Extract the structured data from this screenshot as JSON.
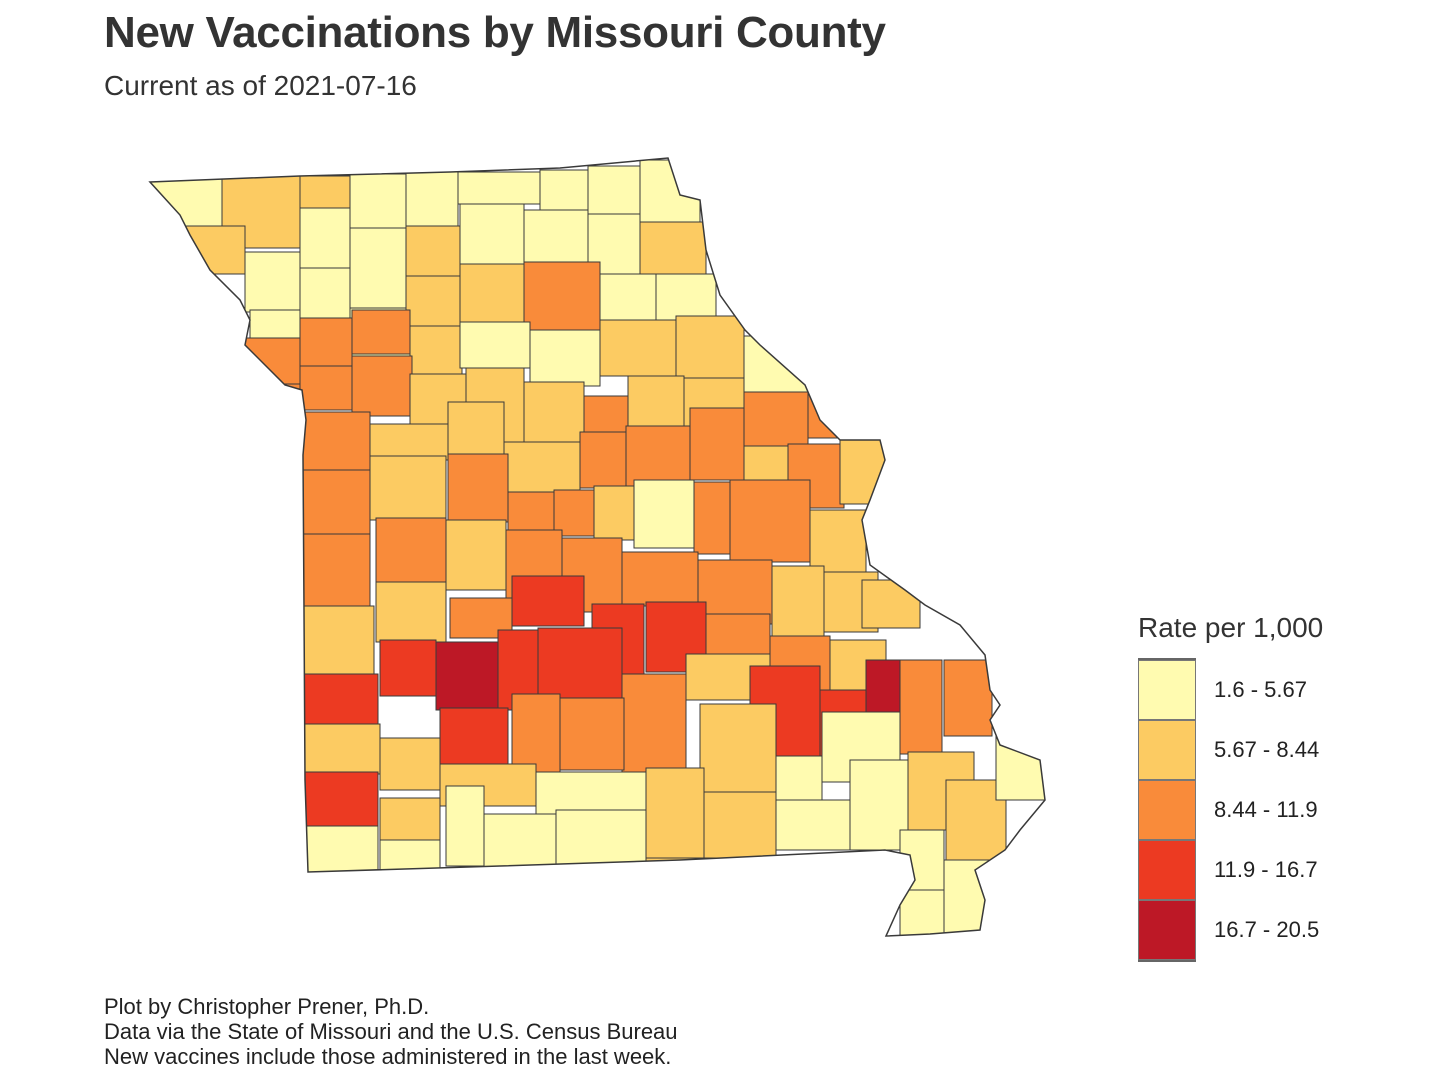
{
  "title": "New Vaccinations by Missouri County",
  "subtitle": "Current as of 2021-07-16",
  "legend": {
    "title": "Rate per 1,000",
    "classes": [
      {
        "label": "1.6 - 5.67",
        "color": "#FFFBB0"
      },
      {
        "label": "5.67 - 8.44",
        "color": "#FCCB62"
      },
      {
        "label": "8.44 - 11.9",
        "color": "#F98B3A"
      },
      {
        "label": "11.9 - 16.7",
        "color": "#EC3A22"
      },
      {
        "label": "16.7 - 20.5",
        "color": "#BD1826"
      }
    ]
  },
  "caption": [
    "Plot by Christopher Prener, Ph.D.",
    "Data via the State of Missouri and the U.S. Census Bureau",
    "New vaccines include those administered in the last week."
  ],
  "counties_class_sequence": [
    0,
    1,
    1,
    0,
    0,
    0,
    0,
    0,
    0,
    1,
    0,
    0,
    0,
    1,
    0,
    0,
    0,
    1,
    0,
    0,
    0,
    1,
    1,
    2,
    0,
    0,
    2,
    2,
    2,
    1,
    0,
    0,
    1,
    1,
    0,
    2,
    2,
    2,
    1,
    1,
    1,
    2,
    1,
    1,
    2,
    2,
    2,
    1,
    1,
    1,
    2,
    2,
    2,
    1,
    2,
    1,
    2,
    1,
    2,
    2,
    2,
    1,
    0,
    2,
    2,
    1,
    2,
    2,
    1,
    2,
    2,
    2,
    2,
    1,
    1,
    1,
    1,
    1,
    2,
    3,
    3,
    3,
    2,
    2,
    1,
    2,
    3,
    3,
    4,
    3,
    3,
    2,
    1,
    3,
    3,
    4,
    1,
    1,
    3,
    2,
    2,
    1,
    0,
    0,
    2,
    2,
    3,
    1,
    1,
    0,
    1,
    1,
    0
  ]
}
